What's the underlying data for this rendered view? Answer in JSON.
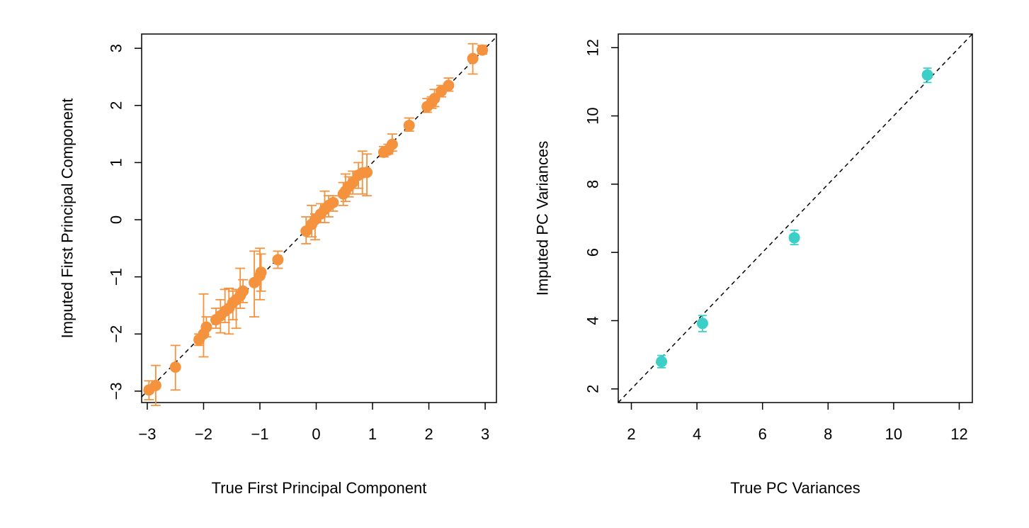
{
  "chart_data": [
    {
      "type": "scatter",
      "title": "",
      "xlabel": "True First Principal Component",
      "ylabel": "Imputed First Principal Component",
      "xlim": [
        -3.1,
        3.2
      ],
      "ylim": [
        -3.2,
        3.25
      ],
      "x_ticks": [
        -3,
        -2,
        -1,
        0,
        1,
        2,
        3
      ],
      "y_ticks": [
        -3,
        -2,
        -1,
        0,
        1,
        2,
        3
      ],
      "x_tick_labels": [
        "−3",
        "−2",
        "−1",
        "0",
        "1",
        "2",
        "3"
      ],
      "y_tick_labels": [
        "−3",
        "−2",
        "−1",
        "0",
        "1",
        "2",
        "3"
      ],
      "grid": false,
      "reference_line": "y = x (dashed)",
      "color": "#F5923E",
      "series": [
        {
          "points": [
            {
              "x": -2.97,
              "y": -2.98,
              "lo": -3.15,
              "hi": -2.82
            },
            {
              "x": -2.85,
              "y": -2.9,
              "lo": -3.25,
              "hi": -2.55
            },
            {
              "x": -2.5,
              "y": -2.58,
              "lo": -2.98,
              "hi": -2.2
            },
            {
              "x": -2.08,
              "y": -2.1,
              "lo": -2.2,
              "hi": -2.0
            },
            {
              "x": -2.0,
              "y": -2.0,
              "lo": -2.4,
              "hi": -1.3
            },
            {
              "x": -1.95,
              "y": -1.88,
              "lo": -2.05,
              "hi": -1.7
            },
            {
              "x": -1.78,
              "y": -1.75,
              "lo": -1.9,
              "hi": -1.55
            },
            {
              "x": -1.7,
              "y": -1.68,
              "lo": -1.98,
              "hi": -1.4
            },
            {
              "x": -1.62,
              "y": -1.6,
              "lo": -1.8,
              "hi": -1.22
            },
            {
              "x": -1.55,
              "y": -1.55,
              "lo": -2.0,
              "hi": -1.2
            },
            {
              "x": -1.48,
              "y": -1.45,
              "lo": -1.75,
              "hi": -1.25
            },
            {
              "x": -1.42,
              "y": -1.4,
              "lo": -1.9,
              "hi": -1.22
            },
            {
              "x": -1.35,
              "y": -1.33,
              "lo": -1.55,
              "hi": -0.85
            },
            {
              "x": -1.3,
              "y": -1.25,
              "lo": -1.45,
              "hi": -1.05
            },
            {
              "x": -1.1,
              "y": -1.1,
              "lo": -1.7,
              "hi": -0.55
            },
            {
              "x": -1.0,
              "y": -0.98,
              "lo": -1.4,
              "hi": -0.5
            },
            {
              "x": -0.98,
              "y": -0.92,
              "lo": -1.25,
              "hi": -0.6
            },
            {
              "x": -0.68,
              "y": -0.7,
              "lo": -0.85,
              "hi": -0.55
            },
            {
              "x": -0.18,
              "y": -0.2,
              "lo": -0.42,
              "hi": 0.05
            },
            {
              "x": -0.08,
              "y": -0.08,
              "lo": -0.3,
              "hi": 0.25
            },
            {
              "x": -0.02,
              "y": 0.0,
              "lo": -0.35,
              "hi": 0.1
            },
            {
              "x": 0.08,
              "y": 0.1,
              "lo": -0.05,
              "hi": 0.28
            },
            {
              "x": 0.15,
              "y": 0.18,
              "lo": -0.05,
              "hi": 0.5
            },
            {
              "x": 0.22,
              "y": 0.25,
              "lo": 0.05,
              "hi": 0.42
            },
            {
              "x": 0.3,
              "y": 0.3,
              "lo": 0.15,
              "hi": 0.42
            },
            {
              "x": 0.48,
              "y": 0.45,
              "lo": 0.25,
              "hi": 0.65
            },
            {
              "x": 0.52,
              "y": 0.5,
              "lo": 0.32,
              "hi": 0.8
            },
            {
              "x": 0.58,
              "y": 0.58,
              "lo": 0.4,
              "hi": 0.75
            },
            {
              "x": 0.65,
              "y": 0.65,
              "lo": 0.45,
              "hi": 0.85
            },
            {
              "x": 0.75,
              "y": 0.78,
              "lo": 0.55,
              "hi": 1.0
            },
            {
              "x": 0.82,
              "y": 0.82,
              "lo": 0.45,
              "hi": 1.2
            },
            {
              "x": 0.9,
              "y": 0.83,
              "lo": 0.42,
              "hi": 1.15
            },
            {
              "x": 1.2,
              "y": 1.18,
              "lo": 1.1,
              "hi": 1.28
            },
            {
              "x": 1.28,
              "y": 1.22,
              "lo": 1.15,
              "hi": 1.32
            },
            {
              "x": 1.35,
              "y": 1.32,
              "lo": 1.2,
              "hi": 1.5
            },
            {
              "x": 1.65,
              "y": 1.65,
              "lo": 1.55,
              "hi": 1.78
            },
            {
              "x": 1.97,
              "y": 1.98,
              "lo": 1.88,
              "hi": 2.12
            },
            {
              "x": 2.05,
              "y": 2.05,
              "lo": 1.95,
              "hi": 2.15
            },
            {
              "x": 2.1,
              "y": 2.12,
              "lo": 1.98,
              "hi": 2.28
            },
            {
              "x": 2.22,
              "y": 2.25,
              "lo": 2.15,
              "hi": 2.35
            },
            {
              "x": 2.35,
              "y": 2.35,
              "lo": 2.25,
              "hi": 2.48
            },
            {
              "x": 2.78,
              "y": 2.82,
              "lo": 2.55,
              "hi": 3.08
            },
            {
              "x": 2.95,
              "y": 2.97,
              "lo": 2.9,
              "hi": 3.05
            }
          ]
        }
      ]
    },
    {
      "type": "scatter",
      "title": "",
      "xlabel": "True PC Variances",
      "ylabel": "Imputed PC Variances",
      "xlim": [
        1.6,
        12.4
      ],
      "ylim": [
        1.6,
        12.4
      ],
      "x_ticks": [
        2,
        4,
        6,
        8,
        10,
        12
      ],
      "y_ticks": [
        2,
        4,
        6,
        8,
        10,
        12
      ],
      "x_tick_labels": [
        "2",
        "4",
        "6",
        "8",
        "10",
        "12"
      ],
      "y_tick_labels": [
        "2",
        "4",
        "6",
        "8",
        "10",
        "12"
      ],
      "grid": false,
      "reference_line": "y = x (dashed)",
      "color": "#3CCFC8",
      "series": [
        {
          "points": [
            {
              "x": 2.92,
              "y": 2.8,
              "lo": 2.62,
              "hi": 2.98
            },
            {
              "x": 4.17,
              "y": 3.92,
              "lo": 3.68,
              "hi": 4.15
            },
            {
              "x": 6.97,
              "y": 6.43,
              "lo": 6.23,
              "hi": 6.65
            },
            {
              "x": 11.03,
              "y": 11.2,
              "lo": 10.98,
              "hi": 11.4
            }
          ]
        }
      ]
    }
  ]
}
